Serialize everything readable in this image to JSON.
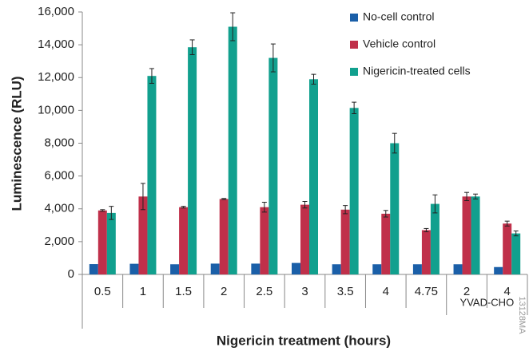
{
  "chart_data": {
    "type": "bar",
    "ylabel": "Luminescence (RLU)",
    "xlabel": "Nigericin treatment (hours)",
    "group_label": "YVAD-CHO",
    "side_label": "13128MA",
    "categories": [
      "0.5",
      "1",
      "1.5",
      "2",
      "2.5",
      "3",
      "3.5",
      "4",
      "4.75",
      "2",
      "4"
    ],
    "series": [
      {
        "name": "No-cell control",
        "color": "#1a5fa8",
        "values": [
          630,
          650,
          620,
          660,
          660,
          700,
          620,
          620,
          620,
          620,
          450
        ]
      },
      {
        "name": "Vehicle control",
        "color": "#c0304a",
        "values": [
          3900,
          4750,
          4100,
          4600,
          4100,
          4250,
          3950,
          3700,
          2700,
          4750,
          3100
        ],
        "errors": [
          50,
          800,
          50,
          30,
          300,
          200,
          250,
          200,
          100,
          250,
          150
        ]
      },
      {
        "name": "Nigericin-treated cells",
        "color": "#11a08e",
        "values": [
          3750,
          12100,
          13850,
          15100,
          13200,
          11900,
          10150,
          8000,
          4300,
          4750,
          2500
        ],
        "errors": [
          400,
          450,
          450,
          850,
          850,
          300,
          350,
          600,
          550,
          150,
          150
        ]
      }
    ],
    "ylim": [
      0,
      16000
    ],
    "yticks": [
      0,
      {
        "value": 2000,
        "label": "2,000"
      },
      {
        "value": 4000,
        "label": "4,000"
      },
      {
        "value": 6000,
        "label": "6,000"
      },
      {
        "value": 8000,
        "label": "8,000"
      },
      {
        "value": 10000,
        "label": "10,000"
      },
      {
        "value": 12000,
        "label": "12,000"
      },
      {
        "value": 14000,
        "label": "14,000"
      },
      {
        "value": 16000,
        "label": "16,000"
      }
    ],
    "legend": "top-right"
  }
}
